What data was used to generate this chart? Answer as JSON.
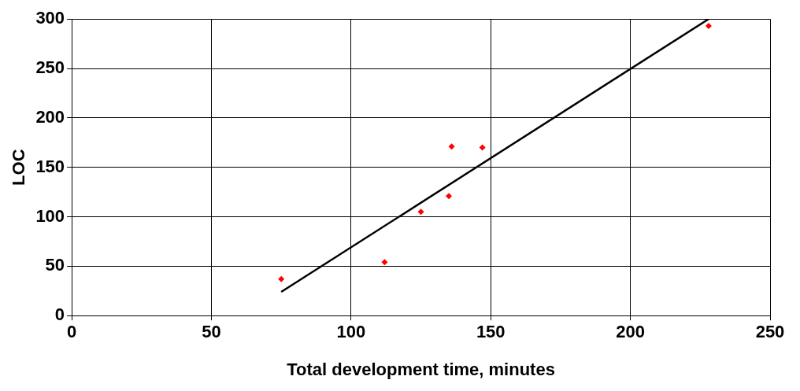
{
  "chart_data": {
    "type": "scatter",
    "xlabel": "Total development time, minutes",
    "ylabel": "LOC",
    "xlim": [
      0,
      250
    ],
    "xticks": [
      0,
      50,
      100,
      150,
      200,
      250
    ],
    "ylim": [
      0,
      300
    ],
    "yticks": [
      0,
      50,
      100,
      150,
      200,
      250,
      300
    ],
    "grid": true,
    "legend": false,
    "marker": "diamond",
    "series": [
      {
        "color": "#ff0000",
        "x": [
          75,
          112,
          125,
          135,
          136,
          147,
          228
        ],
        "values": [
          37,
          54,
          105,
          121,
          171,
          170,
          293
        ]
      },
      {
        "type": "line",
        "color": "#000000",
        "marker": "none",
        "x": [
          75,
          228
        ],
        "values": [
          24,
          300
        ]
      }
    ]
  }
}
